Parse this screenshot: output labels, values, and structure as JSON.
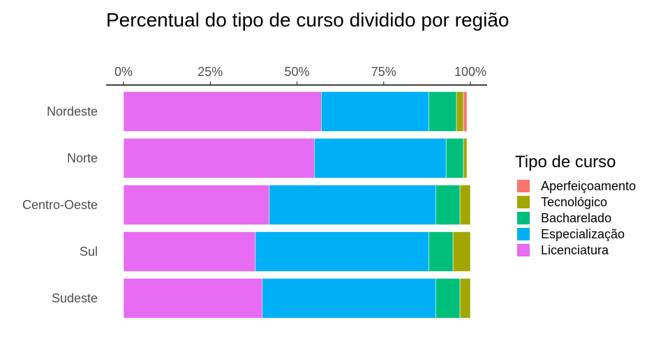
{
  "chart_data": {
    "type": "bar",
    "orientation": "horizontal",
    "stacked": true,
    "title": "Percentual do tipo de curso dividido por região",
    "x_axis_position": "top",
    "xlim": [
      0,
      1
    ],
    "x_ticks": [
      "0%",
      "25%",
      "50%",
      "75%",
      "100%"
    ],
    "x_tick_values": [
      0,
      0.25,
      0.5,
      0.75,
      1.0
    ],
    "categories": [
      "Nordeste",
      "Norte",
      "Centro-Oeste",
      "Sul",
      "Sudeste"
    ],
    "series": [
      {
        "name": "Licenciatura",
        "color": "#E76BF3",
        "values": [
          0.57,
          0.55,
          0.42,
          0.38,
          0.4
        ]
      },
      {
        "name": "Especialização",
        "color": "#00B0F6",
        "values": [
          0.31,
          0.38,
          0.48,
          0.5,
          0.5
        ]
      },
      {
        "name": "Bacharelado",
        "color": "#00BF7D",
        "values": [
          0.08,
          0.05,
          0.07,
          0.07,
          0.07
        ]
      },
      {
        "name": "Tecnológico",
        "color": "#A3A500",
        "values": [
          0.02,
          0.01,
          0.03,
          0.05,
          0.03
        ]
      },
      {
        "name": "Aperfeiçoamento",
        "color": "#F8766D",
        "values": [
          0.01,
          0.0,
          0.0,
          0.0,
          0.0
        ]
      }
    ],
    "legend": {
      "title": "Tipo de curso",
      "position": "right",
      "order": [
        "Aperfeiçoamento",
        "Tecnológico",
        "Bacharelado",
        "Especialização",
        "Licenciatura"
      ]
    },
    "grid": false
  }
}
